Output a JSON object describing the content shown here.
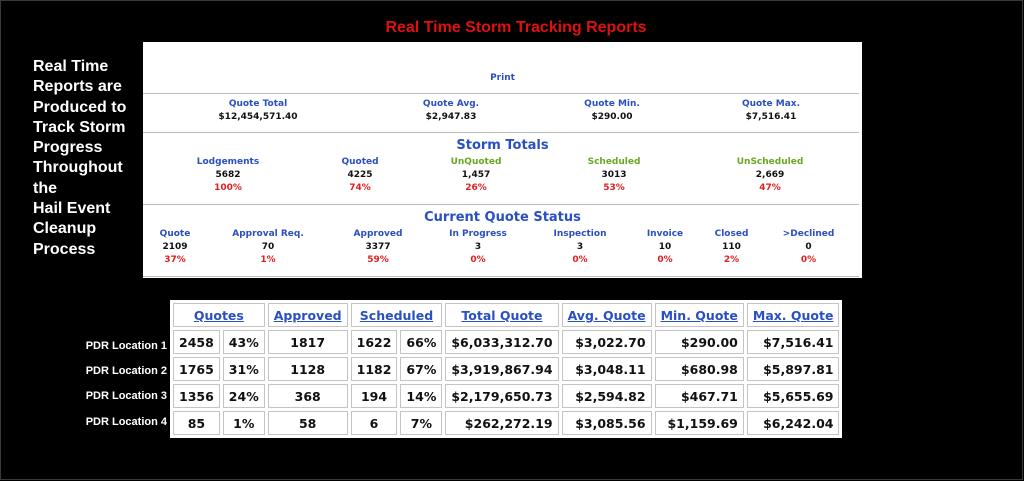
{
  "title": "Real Time Storm Tracking Reports",
  "side_lines": [
    "Real Time",
    "Reports are",
    "Produced to",
    "Track Storm",
    "Progress",
    "Throughout",
    "the",
    "Hail Event",
    "Cleanup",
    "Process"
  ],
  "report": {
    "print_label": "Print",
    "summary": [
      {
        "label": "Quote Total",
        "value": "$12,454,571.40"
      },
      {
        "label": "Quote Avg.",
        "value": "$2,947.83"
      },
      {
        "label": "Quote Min.",
        "value": "$290.00"
      },
      {
        "label": "Quote Max.",
        "value": "$7,516.41"
      }
    ],
    "storm_totals_title": "Storm Totals",
    "storm_totals": [
      {
        "label": "Lodgements",
        "value": "5682",
        "pct": "100%"
      },
      {
        "label": "Quoted",
        "value": "4225",
        "pct": "74%"
      },
      {
        "label": "UnQuoted",
        "value": "1,457",
        "pct": "26%"
      },
      {
        "label": "Scheduled",
        "value": "3013",
        "pct": "53%"
      },
      {
        "label": "UnScheduled",
        "value": "2,669",
        "pct": "47%"
      }
    ],
    "quote_status_title": "Current Quote Status",
    "quote_status": [
      {
        "label": "Quote",
        "value": "2109",
        "pct": "37%"
      },
      {
        "label": "Approval Req.",
        "value": "70",
        "pct": "1%"
      },
      {
        "label": "Approved",
        "value": "3377",
        "pct": "59%"
      },
      {
        "label": "In Progress",
        "value": "3",
        "pct": "0%"
      },
      {
        "label": "Inspection",
        "value": "3",
        "pct": "0%"
      },
      {
        "label": "Invoice",
        "value": "10",
        "pct": "0%"
      },
      {
        "label": "Closed",
        "value": "110",
        "pct": "2%"
      },
      {
        "label": ">Declined",
        "value": "0",
        "pct": "0%"
      }
    ]
  },
  "locations": {
    "headers": {
      "quotes": "Quotes",
      "approved": "Approved",
      "scheduled": "Scheduled",
      "total": "Total Quote",
      "avg": "Avg. Quote",
      "min": "Min. Quote",
      "max": "Max. Quote"
    },
    "rows": [
      {
        "label": "PDR Location 1",
        "quotes": "2458",
        "quotes_pct": "43%",
        "approved": "1817",
        "scheduled": "1622",
        "scheduled_pct": "66%",
        "total": "$6,033,312.70",
        "avg": "$3,022.70",
        "min": "$290.00",
        "max": "$7,516.41"
      },
      {
        "label": "PDR Location 2",
        "quotes": "1765",
        "quotes_pct": "31%",
        "approved": "1128",
        "scheduled": "1182",
        "scheduled_pct": "67%",
        "total": "$3,919,867.94",
        "avg": "$3,048.11",
        "min": "$680.98",
        "max": "$5,897.81"
      },
      {
        "label": "PDR Location 3",
        "quotes": "1356",
        "quotes_pct": "24%",
        "approved": "368",
        "scheduled": "194",
        "scheduled_pct": "14%",
        "total": "$2,179,650.73",
        "avg": "$2,594.82",
        "min": "$467.71",
        "max": "$5,655.69"
      },
      {
        "label": "PDR Location 4",
        "quotes": "85",
        "quotes_pct": "1%",
        "approved": "58",
        "scheduled": "6",
        "scheduled_pct": "7%",
        "total": "$262,272.19",
        "avg": "$3,085.56",
        "min": "$1,159.69",
        "max": "$6,242.04"
      }
    ]
  }
}
